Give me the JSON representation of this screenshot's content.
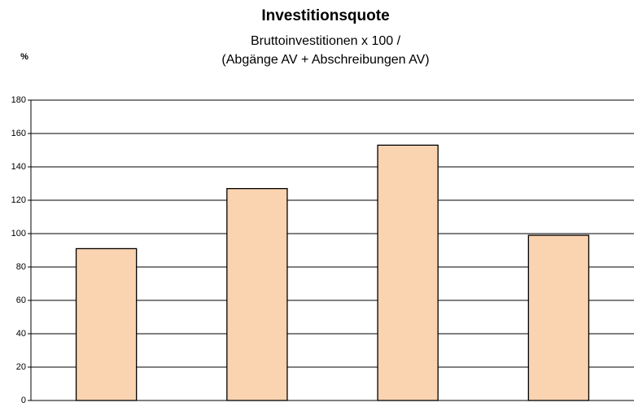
{
  "chart_data": {
    "type": "bar",
    "title": "Investitionsquote",
    "subtitle": [
      "Bruttoinvestitionen x 100 /",
      "(Abgänge AV + Abschreibungen AV)"
    ],
    "y_label": "%",
    "categories": [
      null,
      null,
      null,
      null
    ],
    "values": [
      91,
      127,
      153,
      99
    ],
    "color": "#fad3b0",
    "ylim": [
      0,
      180
    ],
    "yticks": [
      0,
      20,
      40,
      60,
      80,
      100,
      120,
      140,
      160,
      180
    ],
    "grid": true
  }
}
